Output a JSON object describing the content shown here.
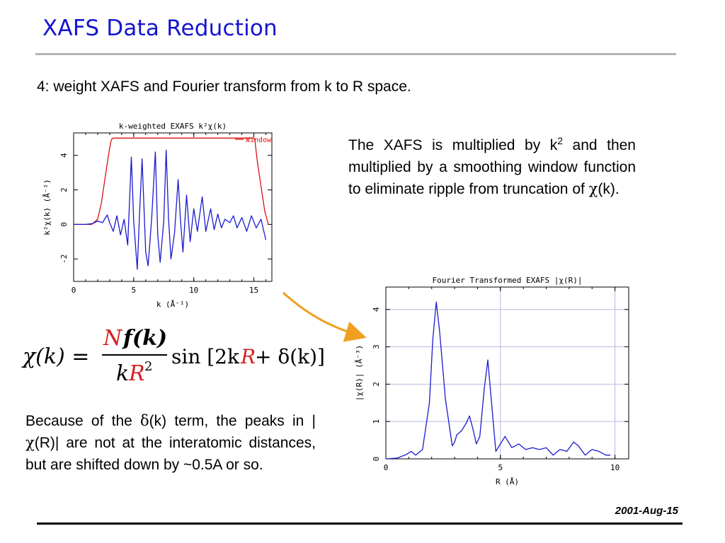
{
  "slide": {
    "title": "XAFS Data Reduction",
    "step": "4:  weight XAFS and Fourier transform from k to R space.",
    "desc_before_sup": "The XAFS is multiplied by k",
    "desc_sup": "2",
    "desc_after_sup": " and then multiplied by a smoothing window function to eliminate ripple from truncation of ",
    "desc_chi": "χ",
    "desc_end": "(k).",
    "note_1": "Because of the ",
    "note_delta": "δ",
    "note_2": "(k) term, the peaks in |",
    "note_chi": "χ",
    "note_3": "(R)|   are not at the interatomic distances, but are shifted down by ~0.5A or so.",
    "date": "2001-Aug-15"
  },
  "formula": {
    "lhs": "χ(k) =",
    "num_N": "N",
    "num_f": "f(k)",
    "den_k": "k",
    "den_R": "R",
    "den_exp": "2",
    "sin": "sin [2k",
    "sin_R": "R",
    "sin_rest": " + δ(k)]",
    "accent_color": "#d42020"
  },
  "chart_data": [
    {
      "type": "line",
      "title": "k-weighted EXAFS k²χ(k)",
      "xlabel": "k (Å⁻¹)",
      "ylabel": "k²χ(k) (Å⁻²)",
      "xlim": [
        0,
        16.5
      ],
      "ylim": [
        -3.3,
        5.3
      ],
      "xticks": [
        0,
        5,
        10,
        15
      ],
      "yticks": [
        -2,
        0,
        2,
        4
      ],
      "series": [
        {
          "name": "Window",
          "color": "#e01010",
          "x": [
            0,
            1.5,
            2.0,
            2.3,
            2.6,
            2.9,
            3.1,
            3.2,
            3.4,
            15.0,
            15.1,
            15.3,
            15.6,
            15.9,
            16.2
          ],
          "y": [
            0,
            0,
            0.3,
            1.2,
            2.6,
            4.0,
            4.8,
            4.98,
            5.0,
            5.0,
            4.8,
            3.6,
            2.2,
            0.8,
            0
          ]
        },
        {
          "name": "",
          "color": "#1a1ad0",
          "x": [
            0.0,
            1.0,
            1.6,
            2.0,
            2.4,
            2.8,
            3.0,
            3.3,
            3.6,
            3.9,
            4.2,
            4.5,
            4.8,
            5.0,
            5.3,
            5.5,
            5.7,
            6.0,
            6.2,
            6.5,
            6.8,
            7.0,
            7.2,
            7.5,
            7.7,
            7.9,
            8.1,
            8.4,
            8.7,
            8.9,
            9.1,
            9.4,
            9.7,
            10.0,
            10.3,
            10.7,
            11.0,
            11.4,
            11.7,
            12.0,
            12.3,
            12.6,
            13.0,
            13.3,
            13.6,
            14.0,
            14.4,
            14.8,
            15.2,
            15.6,
            16.0
          ],
          "y": [
            0,
            0,
            0.05,
            0.2,
            0.1,
            0.55,
            0.1,
            -0.4,
            0.5,
            -0.6,
            0.3,
            -1.2,
            3.9,
            0.2,
            -2.6,
            0.8,
            3.8,
            -1.6,
            -2.4,
            0.4,
            4.2,
            -0.6,
            -2.2,
            0.2,
            4.3,
            0.3,
            -2.0,
            -0.5,
            2.6,
            0.2,
            -1.6,
            1.7,
            -1.0,
            0.9,
            -0.4,
            1.6,
            -0.4,
            0.9,
            -0.3,
            0.6,
            -0.2,
            0.3,
            0.1,
            0.5,
            -0.2,
            0.4,
            -0.4,
            0.5,
            -0.2,
            0.3,
            -0.9
          ]
        }
      ],
      "legend": "top-right",
      "grid": false
    },
    {
      "type": "line",
      "title": "Fourier Transformed EXAFS |χ(R)|",
      "xlabel": "R (Å)",
      "ylabel": "|χ(R)| (Å⁻³)",
      "xlim": [
        0,
        10.6
      ],
      "ylim": [
        0,
        4.6
      ],
      "xticks": [
        0,
        5,
        10
      ],
      "yticks": [
        0,
        1,
        2,
        3,
        4
      ],
      "grid": true,
      "series": [
        {
          "name": "",
          "color": "#1a1ad0",
          "x": [
            0,
            0.5,
            0.9,
            1.1,
            1.3,
            1.6,
            1.9,
            2.05,
            2.2,
            2.35,
            2.6,
            2.9,
            3.0,
            3.1,
            3.3,
            3.5,
            3.65,
            3.8,
            3.95,
            4.1,
            4.3,
            4.45,
            4.6,
            4.8,
            5.0,
            5.2,
            5.5,
            5.8,
            6.1,
            6.4,
            6.7,
            7.0,
            7.3,
            7.6,
            7.9,
            8.2,
            8.4,
            8.7,
            9.0,
            9.3,
            9.6,
            9.8
          ],
          "y": [
            0,
            0.02,
            0.12,
            0.2,
            0.1,
            0.25,
            1.5,
            3.2,
            4.2,
            3.4,
            1.6,
            0.35,
            0.45,
            0.65,
            0.75,
            0.95,
            1.15,
            0.8,
            0.4,
            0.6,
            1.9,
            2.65,
            1.6,
            0.2,
            0.4,
            0.6,
            0.3,
            0.4,
            0.25,
            0.3,
            0.25,
            0.3,
            0.1,
            0.25,
            0.2,
            0.45,
            0.35,
            0.1,
            0.25,
            0.2,
            0.1,
            0.1
          ]
        }
      ]
    }
  ]
}
